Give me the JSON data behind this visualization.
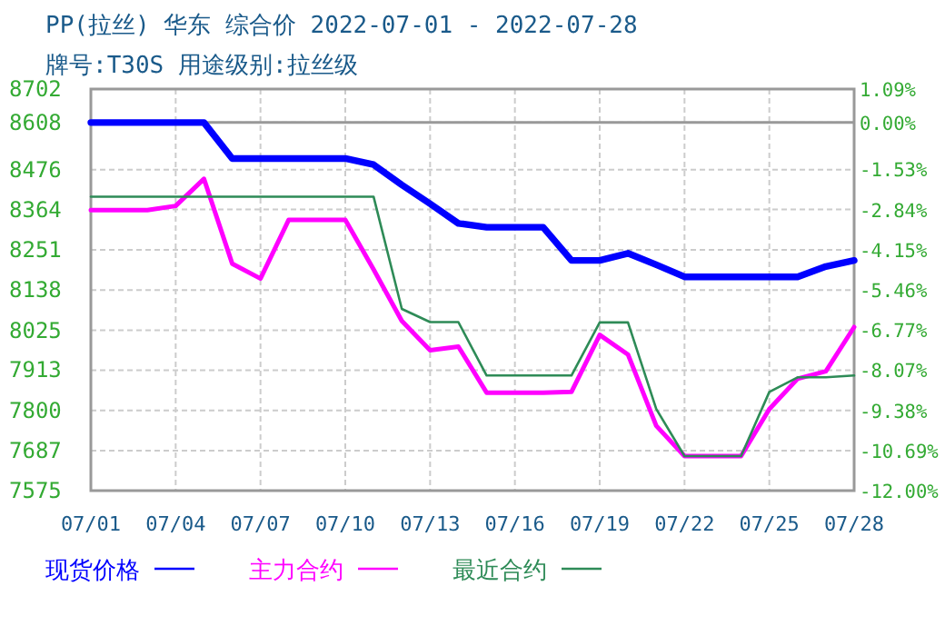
{
  "chart_data": {
    "type": "line",
    "title": "PP(拉丝) 华东 综合价 2022-07-01 - 2022-07-28",
    "subtitle": "牌号:T30S 用途级别:拉丝级",
    "x": [
      "2022-07-01",
      "2022-07-02",
      "2022-07-03",
      "2022-07-04",
      "2022-07-05",
      "2022-07-06",
      "2022-07-07",
      "2022-07-08",
      "2022-07-09",
      "2022-07-10",
      "2022-07-11",
      "2022-07-12",
      "2022-07-13",
      "2022-07-14",
      "2022-07-15",
      "2022-07-16",
      "2022-07-17",
      "2022-07-18",
      "2022-07-19",
      "2022-07-20",
      "2022-07-21",
      "2022-07-22",
      "2022-07-23",
      "2022-07-24",
      "2022-07-25",
      "2022-07-26",
      "2022-07-27",
      "2022-07-28"
    ],
    "series": [
      {
        "name": "现货价格",
        "color": "#0000ff",
        "values": [
          8608,
          8608,
          8608,
          8608,
          8608,
          8507,
          8507,
          8507,
          8507,
          8507,
          8490,
          8433,
          8380,
          8325,
          8314,
          8314,
          8314,
          8221,
          8221,
          8241,
          8209,
          8175,
          8175,
          8175,
          8175,
          8175,
          8204,
          8221
        ]
      },
      {
        "name": "主力合约",
        "color": "#ff00ff",
        "values": [
          8362,
          8362,
          8362,
          8374,
          8450,
          8212,
          8170,
          8335,
          8335,
          8335,
          8196,
          8051,
          7969,
          7979,
          7850,
          7850,
          7850,
          7852,
          8012,
          7957,
          7757,
          7672,
          7672,
          7672,
          7804,
          7889,
          7910,
          8034
        ]
      },
      {
        "name": "最近合约",
        "color": "#2e8b57",
        "values": [
          8400,
          8400,
          8400,
          8400,
          8400,
          8400,
          8400,
          8400,
          8400,
          8400,
          8400,
          8085,
          8048,
          8048,
          7898,
          7898,
          7898,
          7898,
          8047,
          8047,
          7804,
          7672,
          7672,
          7672,
          7852,
          7893,
          7893,
          7898
        ]
      }
    ],
    "xlim": [
      "2022-07-01",
      "2022-07-28"
    ],
    "xticks": [
      {
        "value": "2022-07-01",
        "label": "07/01"
      },
      {
        "value": "2022-07-04",
        "label": "07/04"
      },
      {
        "value": "2022-07-07",
        "label": "07/07"
      },
      {
        "value": "2022-07-10",
        "label": "07/10"
      },
      {
        "value": "2022-07-13",
        "label": "07/13"
      },
      {
        "value": "2022-07-16",
        "label": "07/16"
      },
      {
        "value": "2022-07-19",
        "label": "07/19"
      },
      {
        "value": "2022-07-22",
        "label": "07/22"
      },
      {
        "value": "2022-07-25",
        "label": "07/25"
      },
      {
        "value": "2022-07-28",
        "label": "07/28"
      }
    ],
    "ylim": [
      7575,
      8702
    ],
    "yticks": [
      7575,
      7687,
      7800,
      7913,
      8025,
      8138,
      8251,
      8364,
      8476,
      8608,
      8702
    ],
    "y2lim": [
      -12.0,
      1.09
    ],
    "y2ticks": [
      {
        "value": -12.0,
        "label": "-12.00%"
      },
      {
        "value": -10.69,
        "label": "-10.69%"
      },
      {
        "value": -9.38,
        "label": "-9.38%"
      },
      {
        "value": -8.07,
        "label": "-8.07%"
      },
      {
        "value": -6.77,
        "label": "-6.77%"
      },
      {
        "value": -5.46,
        "label": "-5.46%"
      },
      {
        "value": -4.15,
        "label": "-4.15%"
      },
      {
        "value": -2.84,
        "label": "-2.84%"
      },
      {
        "value": -1.53,
        "label": "-1.53%"
      },
      {
        "value": 0.0,
        "label": "0.00%"
      },
      {
        "value": 1.09,
        "label": "1.09%"
      }
    ],
    "ref_lines": [
      {
        "axis": "y",
        "value": 8608,
        "color": "#999999"
      }
    ],
    "grid": true,
    "legend": "bottom",
    "marker": "none",
    "line_style": "solid"
  }
}
